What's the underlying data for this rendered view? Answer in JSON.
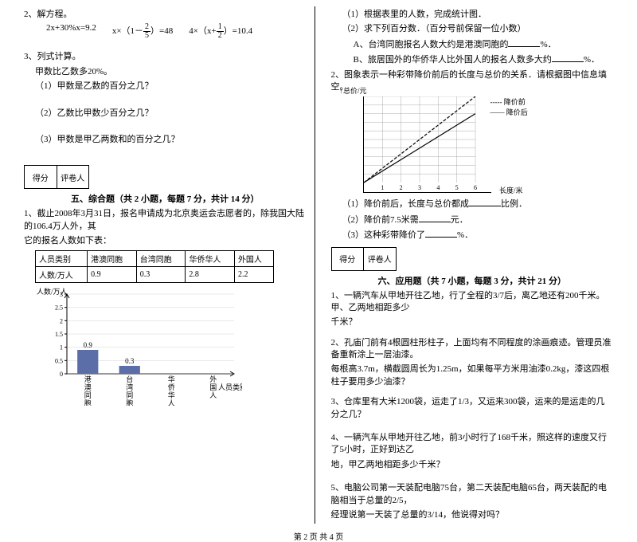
{
  "left": {
    "q2": "2、解方程。",
    "eq1_a": "2x+30%x=9.2",
    "eq1_b_pre": "x×（1－",
    "eq1_b_frac_n": "2",
    "eq1_b_frac_d": "5",
    "eq1_b_suf": "）=48",
    "eq1_c_pre": "4×（x+",
    "eq1_c_frac_n": "1",
    "eq1_c_frac_d": "2",
    "eq1_c_suf": "）=10.4",
    "q3": "3、列式计算。",
    "q3a": "甲数比乙数多20%。",
    "q3b": "（1）甲数是乙数的百分之几？",
    "q3c": "（2）乙数比甲数少百分之几？",
    "q3d": "（3）甲数是甲乙两数和的百分之几？",
    "score_a": "得分",
    "score_b": "评卷人",
    "sec5": "五、综合题（共 2 小题，每题 7 分，共计 14 分）",
    "s5q1a": "1、截止2008年3月31日，报名申请成为北京奥运会志愿者的，除我国大陆的106.4万人外，其",
    "s5q1b": "它的报名人数如下表：",
    "tbl_h1": "人员类别",
    "tbl_h2": "港澳同胞",
    "tbl_h3": "台湾同胞",
    "tbl_h4": "华侨华人",
    "tbl_h5": "外国人",
    "tbl_r1": "人数/万人",
    "tbl_v1": "0.9",
    "tbl_v2": "0.3",
    "tbl_v3": "2.8",
    "tbl_v4": "2.2",
    "chart": {
      "ylabel": "人数/万人",
      "yticks": [
        "0",
        "0.5",
        "1",
        "1.5",
        "2",
        "2.5",
        "3"
      ],
      "xticks": [
        "港澳同胞",
        "台湾同胞",
        "华侨华人",
        "外国人"
      ],
      "xaxis_label": "人员类别",
      "bars": [
        {
          "label": "0.9",
          "value": 0.9,
          "color": "#5b6ea8"
        },
        {
          "label": "0.3",
          "value": 0.3,
          "color": "#5b6ea8"
        }
      ],
      "axis_color": "#000000",
      "grid_color": "#bbbbbb",
      "ymax": 3
    }
  },
  "right": {
    "r1a": "（1）根据表里的人数，完成统计图．",
    "r1b": "（2）求下列百分数．（百分号前保留一位小数）",
    "r1c_pre": "A、台湾同胞报名人数大约是港澳同胞的",
    "r1c_suf": "%．",
    "r1d_pre": "B、旅居国外的华侨华人比外国人的报名人数多大约",
    "r1d_suf": "%．",
    "r2": "2、图象表示一种彩带降价前后的长度与总价的关系．请根据图中信息填空。",
    "linechart": {
      "ylabel": "总价/元",
      "xlabel": "长度/米",
      "legend_before": "降价前",
      "legend_after": "降价后",
      "yticks": [
        "3",
        "6",
        "9",
        "12",
        "15",
        "18",
        "21",
        "24",
        "27",
        "30"
      ],
      "xticks": [
        "1",
        "2",
        "3",
        "4",
        "5",
        "6"
      ],
      "line_before_color": "#000000",
      "line_after_color": "#000000",
      "dash_before": "4,2",
      "axis_color": "#000000"
    },
    "r2a_pre": "（1）降价前后，长度与总价都成",
    "r2a_suf": "比例．",
    "r2b_pre": "（2）降价前7.5米需",
    "r2b_suf": "元．",
    "r2c_pre": "（3）这种彩带降价了",
    "r2c_suf": "%．",
    "score_a": "得分",
    "score_b": "评卷人",
    "sec6": "六、应用题（共 7 小题，每题 3 分，共计 21 分）",
    "s6q1a": "1、一辆汽车从甲地开往乙地，行了全程的3/7后，离乙地还有200千米。甲、乙两地相距多少",
    "s6q1b": "千米？",
    "s6q2a": "2、孔庙门前有4根圆柱形柱子，上面均有不同程度的涂画痕迹。管理员准备重新涂上一层油漆。",
    "s6q2b": "每根高3.7m，横截圆周长为1.25m，如果每平方米用油漆0.2kg，漆这四根柱子要用多少油漆？",
    "s6q3": "3、仓库里有大米1200袋，运走了1/3，又运来300袋，运来的是运走的几分之几？",
    "s6q4a": "4、一辆汽车从甲地开往乙地，前3小时行了168千米，照这样的速度又行了5小时，正好到达乙",
    "s6q4b": "地，甲乙两地相距多少千米？",
    "s6q5a": "5、电脑公司第一天装配电脑75台，第二天装配电脑65台，两天装配的电脑相当于总量的2/5，",
    "s6q5b": "经理说第一天装了总量的3/14，他说得对吗？"
  },
  "footer": "第 2 页 共 4 页"
}
